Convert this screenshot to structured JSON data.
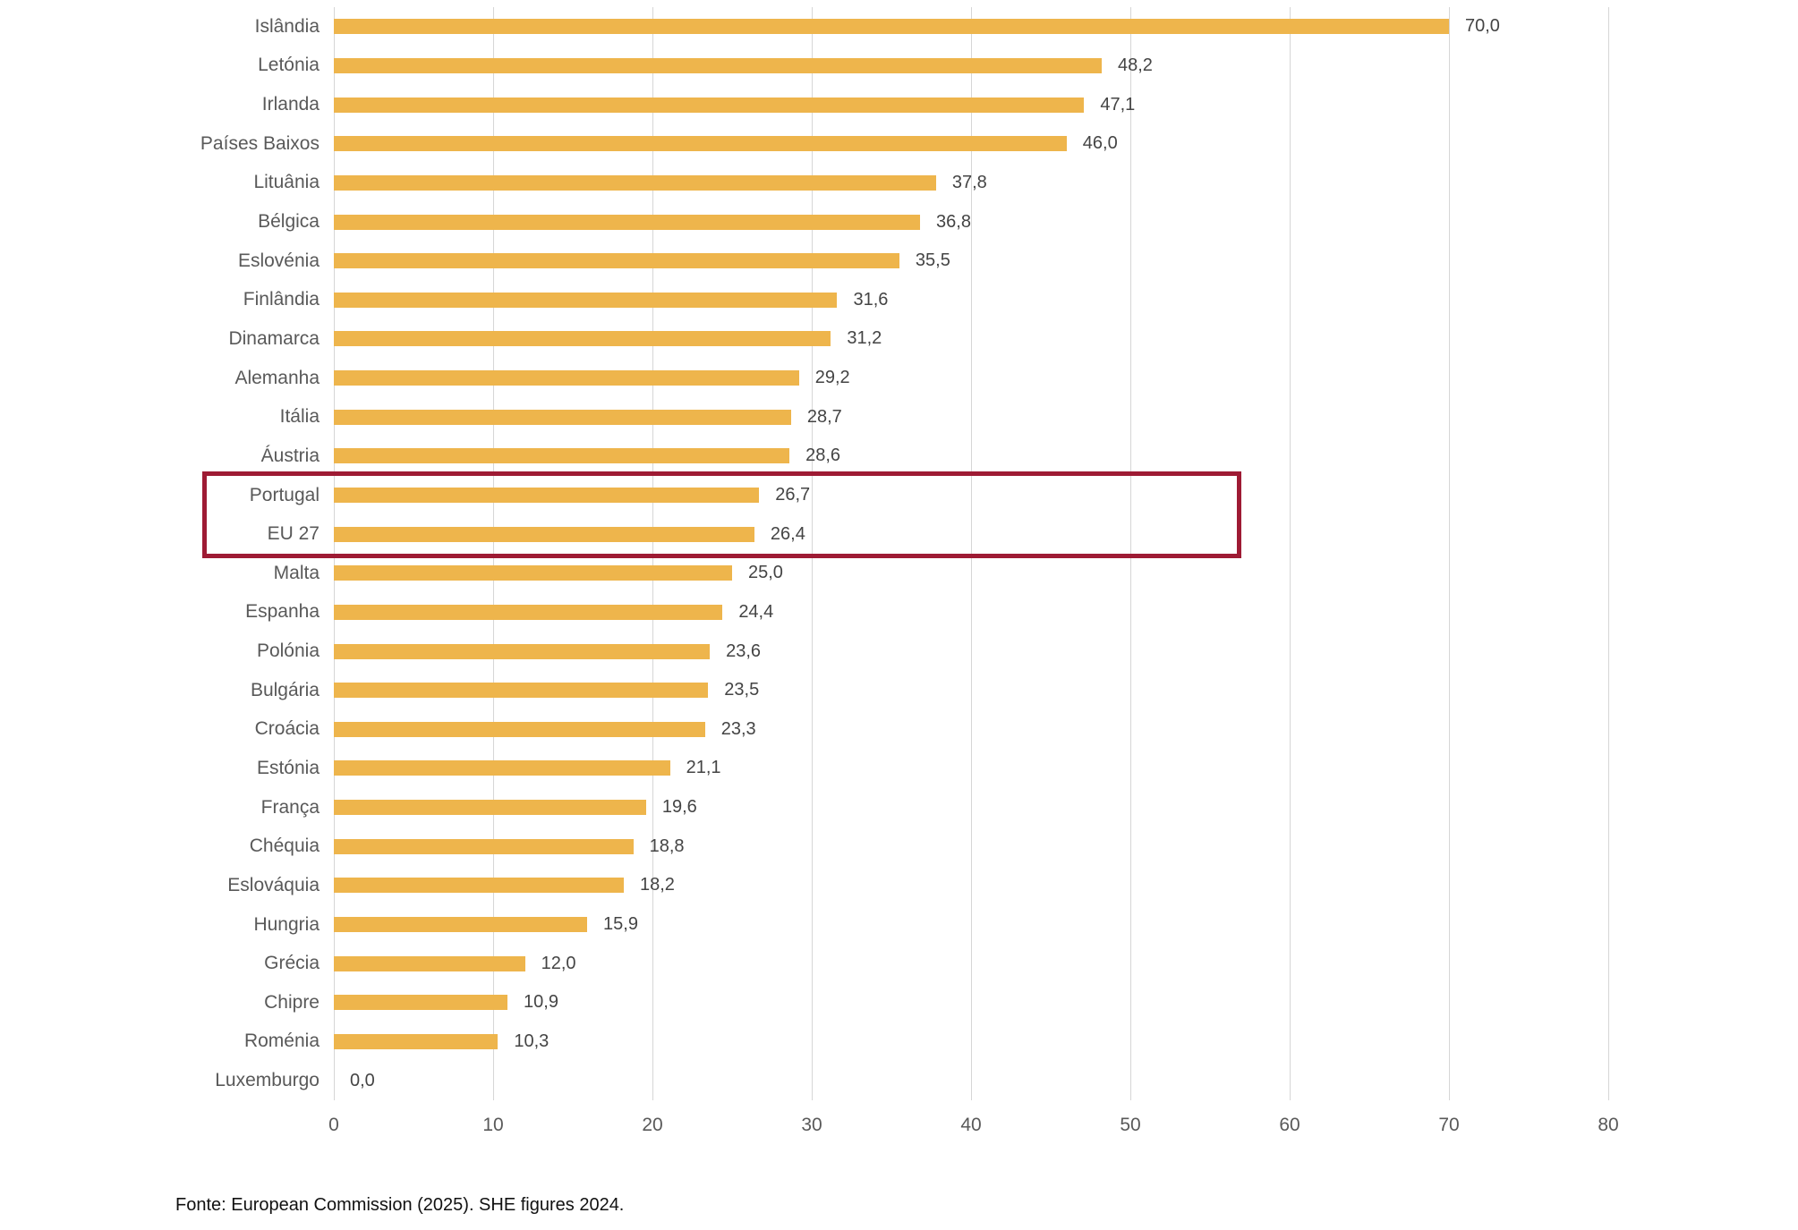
{
  "chart_data": {
    "type": "bar",
    "orientation": "horizontal",
    "title": "",
    "xlabel": "",
    "ylabel": "",
    "xlim": [
      0,
      80
    ],
    "x_ticks": [
      0,
      10,
      20,
      30,
      40,
      50,
      60,
      70,
      80
    ],
    "grid": "vertical",
    "bar_color": "#eeb54c",
    "categories": [
      "Islândia",
      "Letónia",
      "Irlanda",
      "Países Baixos",
      "Lituânia",
      "Bélgica",
      "Eslovénia",
      "Finlândia",
      "Dinamarca",
      "Alemanha",
      "Itália",
      "Áustria",
      "Portugal",
      "EU 27",
      "Malta",
      "Espanha",
      "Polónia",
      "Bulgária",
      "Croácia",
      "Estónia",
      "França",
      "Chéquia",
      "Eslováquia",
      "Hungria",
      "Grécia",
      "Chipre",
      "Roménia",
      "Luxemburgo"
    ],
    "values": [
      70.0,
      48.2,
      47.1,
      46.0,
      37.8,
      36.8,
      35.5,
      31.6,
      31.2,
      29.2,
      28.7,
      28.6,
      26.7,
      26.4,
      25.0,
      24.4,
      23.6,
      23.5,
      23.3,
      21.1,
      19.6,
      18.8,
      18.2,
      15.9,
      12.0,
      10.9,
      10.3,
      0.0
    ],
    "value_labels": [
      "70,0",
      "48,2",
      "47,1",
      "46,0",
      "37,8",
      "36,8",
      "35,5",
      "31,6",
      "31,2",
      "29,2",
      "28,7",
      "28,6",
      "26,7",
      "26,4",
      "25,0",
      "24,4",
      "23,6",
      "23,5",
      "23,3",
      "21,1",
      "19,6",
      "18,8",
      "18,2",
      "15,9",
      "12,0",
      "10,9",
      "10,3",
      "0,0"
    ],
    "highlight": {
      "from_category": "Portugal",
      "to_category": "EU 27",
      "box_color": "#9e1b34"
    }
  },
  "footer": {
    "source": "Fonte: European Commission (2025). SHE figures 2024."
  }
}
